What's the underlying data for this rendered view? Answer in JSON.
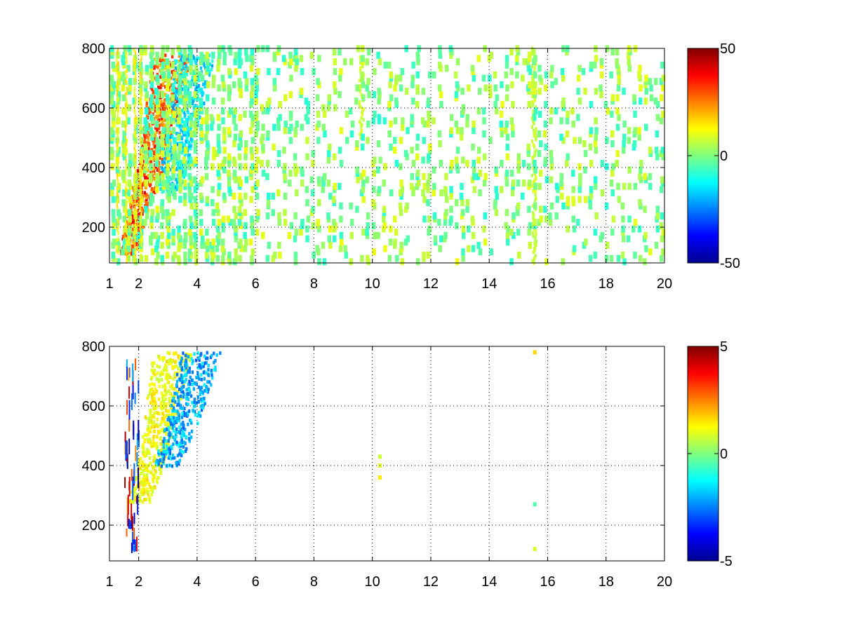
{
  "chart_data": [
    {
      "type": "heatmap",
      "title": "",
      "xlabel": "",
      "ylabel": "",
      "xlim": [
        1,
        20
      ],
      "ylim": [
        80,
        800
      ],
      "grid": true,
      "xticks": [
        1,
        2,
        4,
        6,
        8,
        10,
        12,
        14,
        16,
        18,
        20
      ],
      "yticks": [
        200,
        400,
        600,
        800
      ],
      "colorbar": {
        "min": -50,
        "max": 50,
        "ticks": [
          -50,
          0,
          50
        ],
        "colormap": "jet"
      },
      "features": [
        {
          "name": "positive ridge",
          "x_at_y": [
            [
              1.6,
              110
            ],
            [
              2.0,
              280
            ],
            [
              2.4,
              400
            ],
            [
              2.8,
              600
            ],
            [
              3.1,
              780
            ]
          ],
          "value": 35
        },
        {
          "name": "negative ridge",
          "x_at_y": [
            [
              3.0,
              320
            ],
            [
              3.3,
              450
            ],
            [
              3.6,
              600
            ],
            [
              3.9,
              780
            ]
          ],
          "value": -20
        },
        {
          "name": "vertical line",
          "x": 9.6,
          "y_range": [
            500,
            780
          ],
          "value": 8
        },
        {
          "name": "vertical line",
          "x": 15.5,
          "y_range": [
            80,
            800
          ],
          "value": 8
        }
      ],
      "background": "sparse scattered values near 0 across the whole domain"
    },
    {
      "type": "heatmap",
      "title": "",
      "xlabel": "",
      "ylabel": "",
      "xlim": [
        1,
        20
      ],
      "ylim": [
        80,
        800
      ],
      "grid": true,
      "xticks": [
        1,
        2,
        4,
        6,
        8,
        10,
        12,
        14,
        16,
        18,
        20
      ],
      "yticks": [
        200,
        400,
        600,
        800
      ],
      "colorbar": {
        "min": -5,
        "max": 5,
        "ticks": [
          -5,
          0,
          5
        ],
        "colormap": "jet"
      },
      "features": [
        {
          "name": "positive ridge",
          "x_at_y": [
            [
              2.0,
              280
            ],
            [
              2.4,
              400
            ],
            [
              2.8,
              600
            ],
            [
              3.1,
              780
            ]
          ],
          "value": 1.5
        },
        {
          "name": "negative ridge",
          "x_at_y": [
            [
              2.9,
              400
            ],
            [
              3.3,
              500
            ],
            [
              3.7,
              620
            ],
            [
              4.1,
              780
            ]
          ],
          "value": -2.5
        },
        {
          "name": "isolated points",
          "points": [
            [
              10.2,
              360
            ],
            [
              10.2,
              400
            ],
            [
              10.2,
              430
            ],
            [
              15.5,
              780
            ],
            [
              15.5,
              270
            ],
            [
              15.5,
              120
            ]
          ]
        },
        {
          "name": "low-x streaks",
          "x_range": [
            1.5,
            2.0
          ],
          "y_range": [
            100,
            760
          ]
        }
      ],
      "background": "mostly empty (white)"
    }
  ]
}
